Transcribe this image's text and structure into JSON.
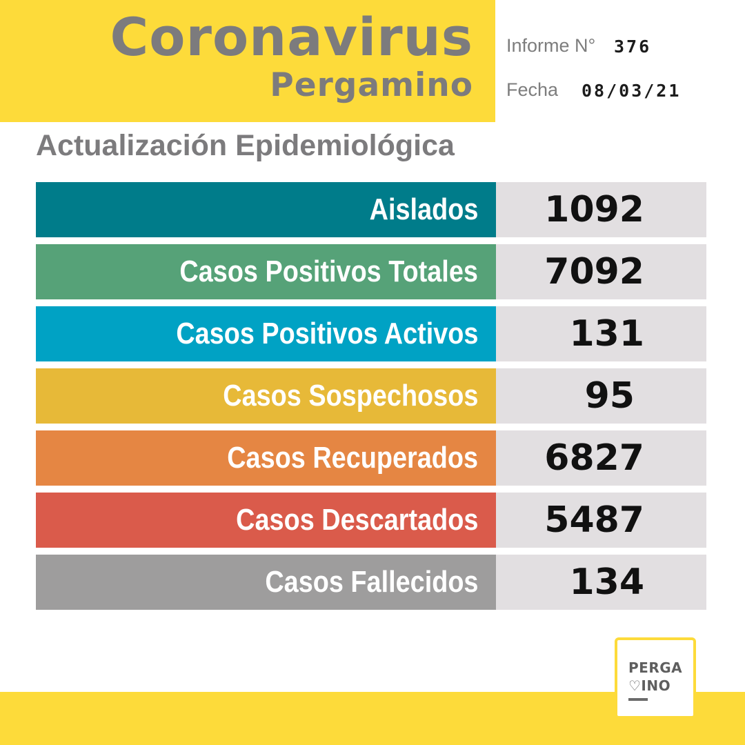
{
  "header": {
    "title": "Coronavirus",
    "city": "Pergamino"
  },
  "report": {
    "informe_label": "Informe N°",
    "informe_number": "376",
    "fecha_label": "Fecha",
    "fecha_value": "08/03/21"
  },
  "subtitle": "Actualización Epidemiológica",
  "stats": [
    {
      "label": "Aislados",
      "value": "1092",
      "color": "#007c8a"
    },
    {
      "label": "Casos Positivos Totales",
      "value": "7092",
      "color": "#56a278"
    },
    {
      "label": "Casos Positivos Activos",
      "value": "131",
      "color": "#00a2c4"
    },
    {
      "label": "Casos Sospechosos",
      "value": "95",
      "color": "#e7b938"
    },
    {
      "label": "Casos Recuperados",
      "value": "6827",
      "color": "#e58643"
    },
    {
      "label": "Casos Descartados",
      "value": "5487",
      "color": "#da5b4b"
    },
    {
      "label": "Casos Fallecidos",
      "value": "134",
      "color": "#9e9d9d"
    }
  ],
  "logo": {
    "line1": "PERGA",
    "line2": "♡INO"
  },
  "colors": {
    "brand_yellow": "#fddb3a",
    "title_gray": "#7c7b7d",
    "value_panel": "#e2dfe1"
  }
}
